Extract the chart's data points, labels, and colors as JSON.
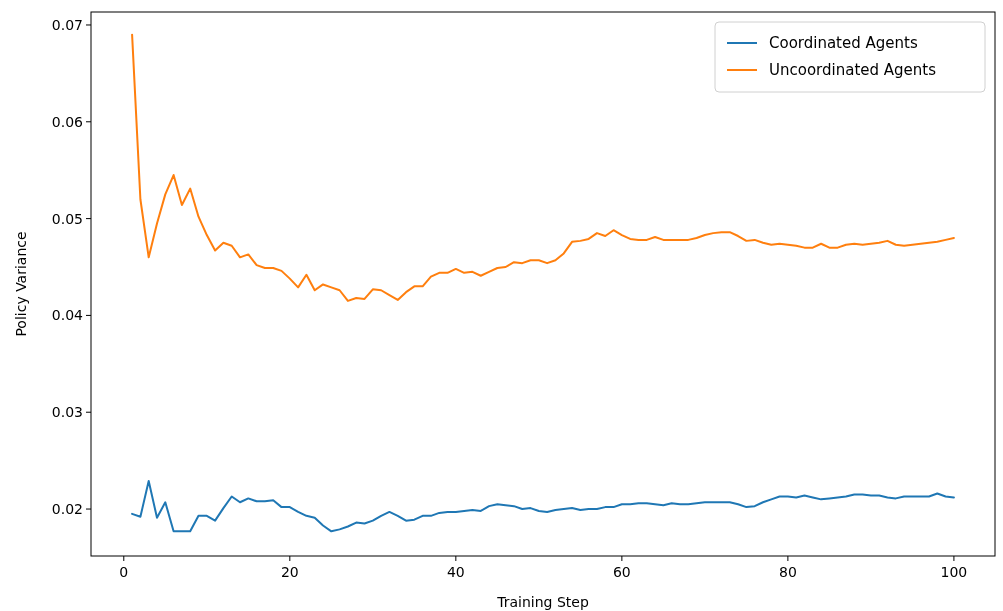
{
  "chart_data": {
    "type": "line",
    "xlabel": "Training Step",
    "ylabel": "Policy Variance",
    "xlim": [
      -3.95,
      104.95
    ],
    "xticks": [
      0,
      20,
      40,
      60,
      80,
      100
    ],
    "ylim": [
      0.01515,
      0.07134
    ],
    "yticks": [
      0.02,
      0.03,
      0.04,
      0.05,
      0.06,
      0.07
    ],
    "legend": "top right",
    "grid": false,
    "x": [
      1,
      2,
      3,
      4,
      5,
      6,
      7,
      8,
      9,
      10,
      11,
      12,
      13,
      14,
      15,
      16,
      17,
      18,
      19,
      20,
      21,
      22,
      23,
      24,
      25,
      26,
      27,
      28,
      29,
      30,
      31,
      32,
      33,
      34,
      35,
      36,
      37,
      38,
      39,
      40,
      41,
      42,
      43,
      44,
      45,
      46,
      47,
      48,
      49,
      50,
      51,
      52,
      53,
      54,
      55,
      56,
      57,
      58,
      59,
      60,
      61,
      62,
      63,
      64,
      65,
      66,
      67,
      68,
      69,
      70,
      71,
      72,
      73,
      74,
      75,
      76,
      77,
      78,
      79,
      80,
      81,
      82,
      83,
      84,
      85,
      86,
      87,
      88,
      89,
      90,
      91,
      92,
      93,
      94,
      95,
      96,
      97,
      98,
      99,
      100
    ],
    "series": [
      {
        "name": "Coordinated Agents",
        "color": "#1f77b4",
        "values": [
          0.0195,
          0.0192,
          0.0229,
          0.0191,
          0.0207,
          0.0177,
          0.0177,
          0.0177,
          0.0193,
          0.0193,
          0.0188,
          0.0201,
          0.0213,
          0.0207,
          0.0211,
          0.0208,
          0.0208,
          0.0209,
          0.0202,
          0.0202,
          0.0197,
          0.0193,
          0.0191,
          0.0183,
          0.0177,
          0.0179,
          0.0182,
          0.0186,
          0.0185,
          0.0188,
          0.0193,
          0.0197,
          0.0193,
          0.0188,
          0.0189,
          0.0193,
          0.0193,
          0.0196,
          0.0197,
          0.0197,
          0.0198,
          0.0199,
          0.0198,
          0.0203,
          0.0205,
          0.0204,
          0.0203,
          0.02,
          0.0201,
          0.0198,
          0.0197,
          0.0199,
          0.02,
          0.0201,
          0.0199,
          0.02,
          0.02,
          0.0202,
          0.0202,
          0.0205,
          0.0205,
          0.0206,
          0.0206,
          0.0205,
          0.0204,
          0.0206,
          0.0205,
          0.0205,
          0.0206,
          0.0207,
          0.0207,
          0.0207,
          0.0207,
          0.0205,
          0.0202,
          0.0203,
          0.0207,
          0.021,
          0.0213,
          0.0213,
          0.0212,
          0.0214,
          0.0212,
          0.021,
          0.0211,
          0.0212,
          0.0213,
          0.0215,
          0.0215,
          0.0214,
          0.0214,
          0.0212,
          0.0211,
          0.0213,
          0.0213,
          0.0213,
          0.0213,
          0.0216,
          0.0213,
          0.0212
        ]
      },
      {
        "name": "Uncoordinated Agents",
        "color": "#ff7f0e",
        "values": [
          0.069,
          0.052,
          0.046,
          0.0495,
          0.0525,
          0.0545,
          0.0514,
          0.0531,
          0.0502,
          0.0483,
          0.0467,
          0.0475,
          0.0472,
          0.046,
          0.0463,
          0.0452,
          0.0449,
          0.0449,
          0.0446,
          0.0438,
          0.0429,
          0.0442,
          0.0426,
          0.0432,
          0.0429,
          0.0426,
          0.0415,
          0.0418,
          0.0417,
          0.0427,
          0.0426,
          0.0421,
          0.0416,
          0.0424,
          0.043,
          0.043,
          0.044,
          0.0444,
          0.0444,
          0.0448,
          0.0444,
          0.0445,
          0.0441,
          0.0445,
          0.0449,
          0.045,
          0.0455,
          0.0454,
          0.0457,
          0.0457,
          0.0454,
          0.0457,
          0.0464,
          0.0476,
          0.0477,
          0.0479,
          0.0485,
          0.0482,
          0.0488,
          0.0483,
          0.0479,
          0.0478,
          0.0478,
          0.0481,
          0.0478,
          0.0478,
          0.0478,
          0.0478,
          0.048,
          0.0483,
          0.0485,
          0.0486,
          0.0486,
          0.0482,
          0.0477,
          0.0478,
          0.0475,
          0.0473,
          0.0474,
          0.0473,
          0.0472,
          0.047,
          0.047,
          0.0474,
          0.047,
          0.047,
          0.0473,
          0.0474,
          0.0473,
          0.0474,
          0.0475,
          0.0477,
          0.0473,
          0.0472,
          0.0473,
          0.0474,
          0.0475,
          0.0476,
          0.0478,
          0.048
        ]
      }
    ]
  }
}
